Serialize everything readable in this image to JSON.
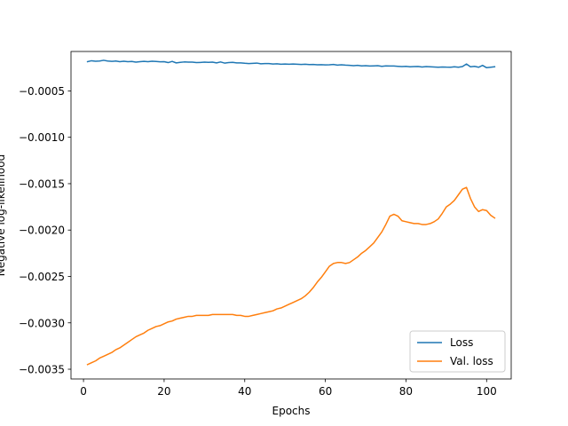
{
  "chart_data": {
    "type": "line",
    "title": "",
    "xlabel": "Epochs",
    "ylabel": "Negative log-likelihood",
    "xlim": [
      -3.1,
      106.1
    ],
    "ylim": [
      -0.003605,
      -7.5e-05
    ],
    "xticks": [
      0,
      20,
      40,
      60,
      80,
      100
    ],
    "xtick_labels": [
      "0",
      "20",
      "40",
      "60",
      "80",
      "100"
    ],
    "yticks": [
      -0.0035,
      -0.003,
      -0.0025,
      -0.002,
      -0.0015,
      -0.001,
      -0.0005
    ],
    "ytick_labels": [
      "−0.0035",
      "−0.0030",
      "−0.0025",
      "−0.0020",
      "−0.0015",
      "−0.0010",
      "−0.0005"
    ],
    "grid": false,
    "legend_position": "lower-right",
    "series": [
      {
        "name": "Loss",
        "color": "#1f77b4",
        "x": [
          1,
          2,
          3,
          4,
          5,
          6,
          7,
          8,
          9,
          10,
          11,
          12,
          13,
          14,
          15,
          16,
          17,
          18,
          19,
          20,
          21,
          22,
          23,
          24,
          25,
          26,
          27,
          28,
          29,
          30,
          31,
          32,
          33,
          34,
          35,
          36,
          37,
          38,
          39,
          40,
          41,
          42,
          43,
          44,
          45,
          46,
          47,
          48,
          49,
          50,
          51,
          52,
          53,
          54,
          55,
          56,
          57,
          58,
          59,
          60,
          61,
          62,
          63,
          64,
          65,
          66,
          67,
          68,
          69,
          70,
          71,
          72,
          73,
          74,
          75,
          76,
          77,
          78,
          79,
          80,
          81,
          82,
          83,
          84,
          85,
          86,
          87,
          88,
          89,
          90,
          91,
          92,
          93,
          94,
          95,
          96,
          97,
          98,
          99,
          100,
          101,
          102
        ],
        "y": [
          -0.000185,
          -0.000175,
          -0.00018,
          -0.000178,
          -0.00017,
          -0.000178,
          -0.000182,
          -0.000178,
          -0.000185,
          -0.00018,
          -0.000185,
          -0.000183,
          -0.00019,
          -0.000185,
          -0.000182,
          -0.000185,
          -0.00018,
          -0.000183,
          -0.000186,
          -0.000185,
          -0.000195,
          -0.000182,
          -0.000198,
          -0.000192,
          -0.000188,
          -0.00019,
          -0.00019,
          -0.000195,
          -0.000193,
          -0.00019,
          -0.000192,
          -0.00019,
          -0.000198,
          -0.000188,
          -0.0002,
          -0.000195,
          -0.000192,
          -0.000198,
          -0.000198,
          -0.000202,
          -0.000205,
          -0.000203,
          -0.0002,
          -0.000208,
          -0.000205,
          -0.000205,
          -0.00021,
          -0.000208,
          -0.000212,
          -0.00021,
          -0.000212,
          -0.00021,
          -0.000212,
          -0.000215,
          -0.000212,
          -0.000216,
          -0.000215,
          -0.000218,
          -0.000217,
          -0.00022,
          -0.000218,
          -0.000215,
          -0.000222,
          -0.000218,
          -0.000222,
          -0.000225,
          -0.000228,
          -0.000225,
          -0.00023,
          -0.000228,
          -0.000232,
          -0.00023,
          -0.000228,
          -0.000235,
          -0.00023,
          -0.000232,
          -0.000232,
          -0.000235,
          -0.000238,
          -0.000235,
          -0.00024,
          -0.000238,
          -0.000236,
          -0.000242,
          -0.000238,
          -0.00024,
          -0.000242,
          -0.000245,
          -0.000242,
          -0.000244,
          -0.000245,
          -0.00024,
          -0.000245,
          -0.000238,
          -0.00021,
          -0.00024,
          -0.000235,
          -0.000245,
          -0.000225,
          -0.00025,
          -0.000245,
          -0.00024
        ]
      },
      {
        "name": "Val. loss",
        "color": "#ff7f0e",
        "x": [
          1,
          2,
          3,
          4,
          5,
          6,
          7,
          8,
          9,
          10,
          11,
          12,
          13,
          14,
          15,
          16,
          17,
          18,
          19,
          20,
          21,
          22,
          23,
          24,
          25,
          26,
          27,
          28,
          29,
          30,
          31,
          32,
          33,
          34,
          35,
          36,
          37,
          38,
          39,
          40,
          41,
          42,
          43,
          44,
          45,
          46,
          47,
          48,
          49,
          50,
          51,
          52,
          53,
          54,
          55,
          56,
          57,
          58,
          59,
          60,
          61,
          62,
          63,
          64,
          65,
          66,
          67,
          68,
          69,
          70,
          71,
          72,
          73,
          74,
          75,
          76,
          77,
          78,
          79,
          80,
          81,
          82,
          83,
          84,
          85,
          86,
          87,
          88,
          89,
          90,
          91,
          92,
          93,
          94,
          95,
          96,
          97,
          98,
          99,
          100,
          101,
          102
        ],
        "y": [
          -0.00345,
          -0.00343,
          -0.00341,
          -0.00338,
          -0.00336,
          -0.00334,
          -0.00332,
          -0.00329,
          -0.00327,
          -0.00324,
          -0.00321,
          -0.00318,
          -0.00315,
          -0.00313,
          -0.00311,
          -0.00308,
          -0.00306,
          -0.00304,
          -0.00303,
          -0.00301,
          -0.00299,
          -0.00298,
          -0.00296,
          -0.00295,
          -0.00294,
          -0.00293,
          -0.00293,
          -0.00292,
          -0.00292,
          -0.00292,
          -0.00292,
          -0.00291,
          -0.00291,
          -0.00291,
          -0.00291,
          -0.00291,
          -0.00291,
          -0.00292,
          -0.00292,
          -0.00293,
          -0.00293,
          -0.00292,
          -0.00291,
          -0.0029,
          -0.00289,
          -0.00288,
          -0.00287,
          -0.00285,
          -0.00284,
          -0.00282,
          -0.0028,
          -0.00278,
          -0.00276,
          -0.00274,
          -0.00271,
          -0.00267,
          -0.00262,
          -0.00256,
          -0.00251,
          -0.00245,
          -0.00239,
          -0.00236,
          -0.00235,
          -0.00235,
          -0.00236,
          -0.00235,
          -0.00232,
          -0.00229,
          -0.00225,
          -0.00222,
          -0.00218,
          -0.00214,
          -0.00208,
          -0.00202,
          -0.00194,
          -0.00185,
          -0.00183,
          -0.00185,
          -0.0019,
          -0.00191,
          -0.00192,
          -0.00193,
          -0.00193,
          -0.00194,
          -0.00194,
          -0.00193,
          -0.00191,
          -0.00188,
          -0.00182,
          -0.00175,
          -0.00172,
          -0.00168,
          -0.00162,
          -0.00156,
          -0.00154,
          -0.00166,
          -0.00175,
          -0.0018,
          -0.00178,
          -0.00179,
          -0.00184,
          -0.00187
        ]
      }
    ]
  }
}
